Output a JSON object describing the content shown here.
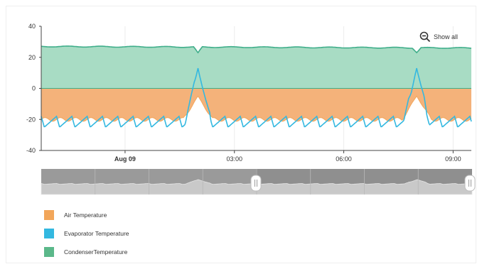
{
  "show_all": {
    "label": "Show all",
    "icon": "zoom-out-icon"
  },
  "chart_data": {
    "type": "area",
    "y_ticks": [
      "40",
      "20",
      "0",
      "-20",
      "-40"
    ],
    "ylim": [
      -40,
      40
    ],
    "x_ticks": [
      {
        "label": "Aug 09",
        "hour": 0,
        "bold": true
      },
      {
        "label": "03:00",
        "hour": 3,
        "bold": false
      },
      {
        "label": "06:00",
        "hour": 6,
        "bold": false
      },
      {
        "label": "09:00",
        "hour": 9,
        "bold": false
      }
    ],
    "x_range_hours": [
      -2.3,
      9.5
    ],
    "defrost_hours": [
      2.0,
      8.0
    ],
    "series": [
      {
        "name": "Air Temperature",
        "color": "#f2a65a",
        "fill": "#f4b27a",
        "baseline_c": -20,
        "defrost_peak_c": -5
      },
      {
        "name": "Evaporator Temperature",
        "color": "#33b8e0",
        "baseline_c": -21,
        "cycle_min_c": -25,
        "cycle_max_c": -18,
        "defrost_peak_c": 13
      },
      {
        "name": "Condenser Temperature",
        "color": "#3fae8a",
        "fill": "#a8dcc4",
        "start_c": 27,
        "end_c": 26,
        "dip_c": 23
      }
    ],
    "legend": [
      {
        "label": "Air Temperature",
        "color": "#f2a65a"
      },
      {
        "label": "Evaporator Temperature",
        "color": "#33b8e0"
      },
      {
        "label": "CondenserTemperature",
        "color": "#5bb88a"
      }
    ]
  }
}
